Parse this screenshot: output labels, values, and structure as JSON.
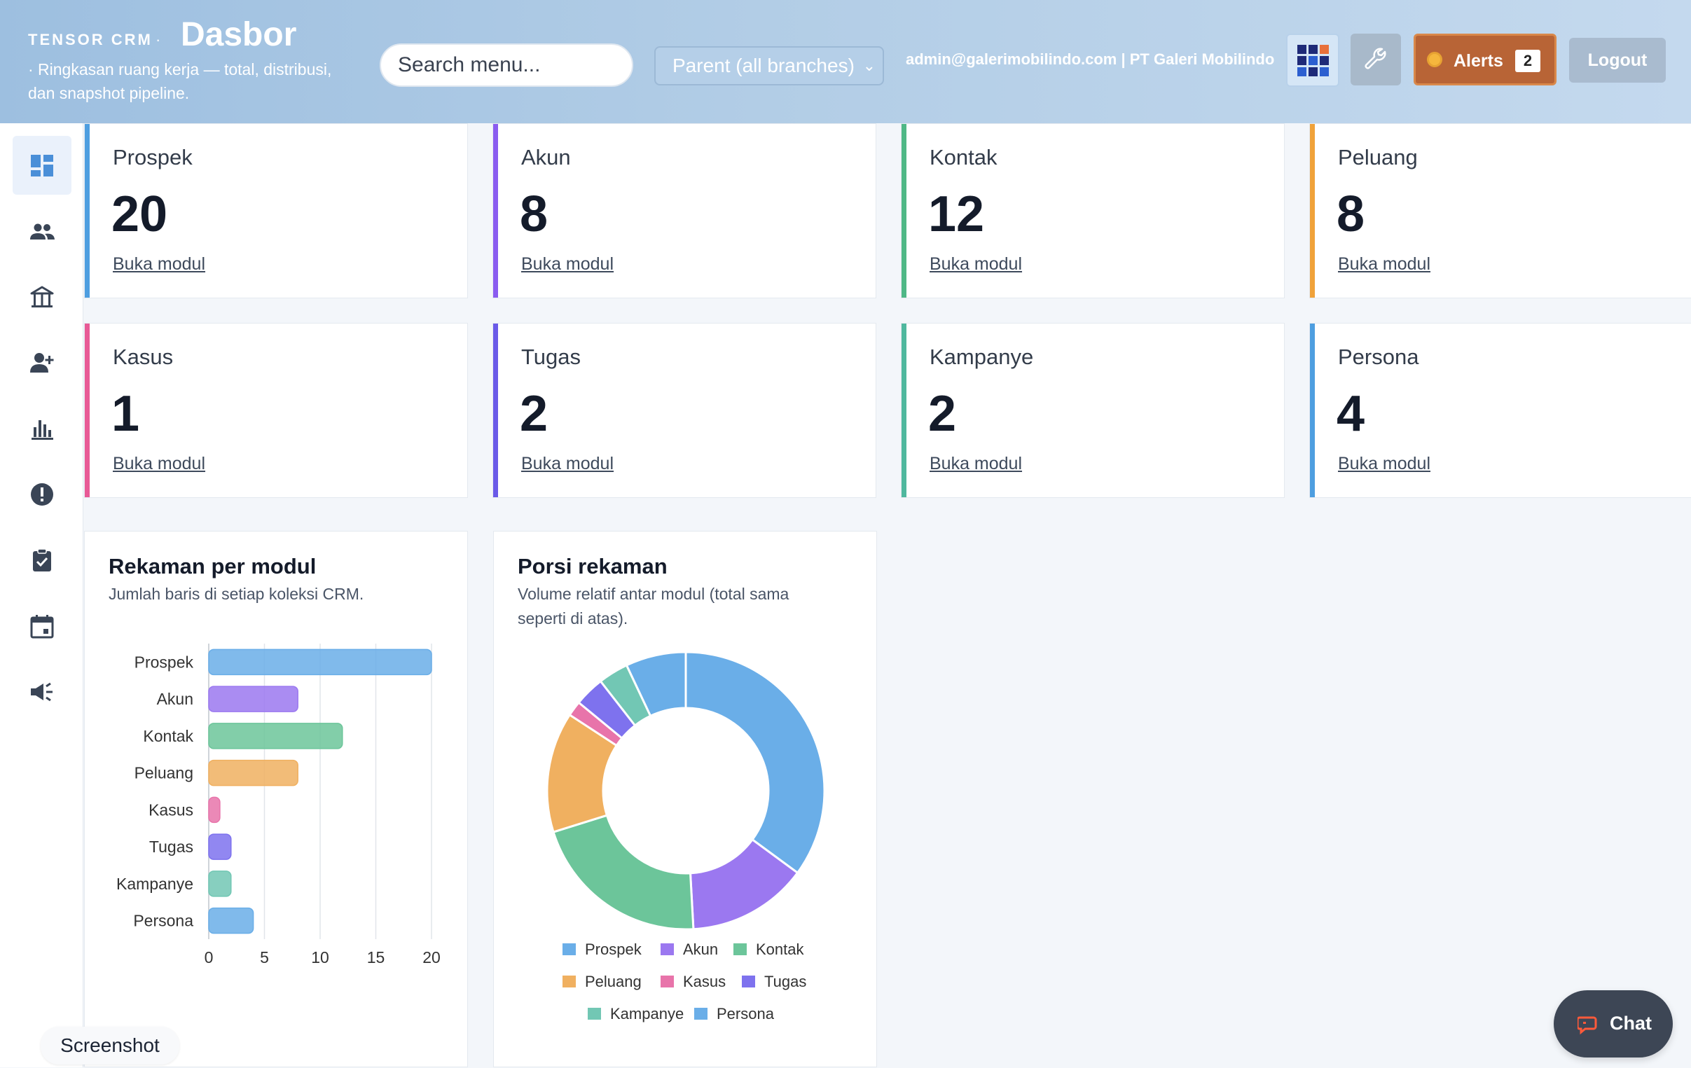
{
  "header": {
    "brand": "TENSOR CRM",
    "separator": "·",
    "title": "Dasbor",
    "subtitle": "·  Ringkasan ruang kerja — total, distribusi, dan snapshot pipeline.",
    "search_placeholder": "Search menu...",
    "branch_select": "Parent (all branches)",
    "user_info": "admin@galerimobilindo.com | PT Galeri Mobilindo",
    "alerts_label": "Alerts",
    "alerts_count": "2",
    "logout_label": "Logout",
    "app_grid_icon": "app-grid-icon",
    "tool_icon": "wrench-icon"
  },
  "sidebar": {
    "items": [
      {
        "icon": "dashboard-icon",
        "active": true
      },
      {
        "icon": "people-icon",
        "active": false
      },
      {
        "icon": "bank-icon",
        "active": false
      },
      {
        "icon": "add-person-icon",
        "active": false
      },
      {
        "icon": "bar-chart-icon",
        "active": false
      },
      {
        "icon": "alert-circle-icon",
        "active": false
      },
      {
        "icon": "clipboard-check-icon",
        "active": false
      },
      {
        "icon": "calendar-icon",
        "active": false
      },
      {
        "icon": "megaphone-icon",
        "active": false
      }
    ]
  },
  "kpis": [
    {
      "name": "Prospek",
      "value": "20",
      "link": "Buka modul",
      "color": "#4e9ee0"
    },
    {
      "name": "Akun",
      "value": "8",
      "link": "Buka modul",
      "color": "#8a5cf0"
    },
    {
      "name": "Kontak",
      "value": "12",
      "link": "Buka modul",
      "color": "#4fb886"
    },
    {
      "name": "Peluang",
      "value": "8",
      "link": "Buka modul",
      "color": "#f0a23a"
    },
    {
      "name": "Kasus",
      "value": "1",
      "link": "Buka modul",
      "color": "#e85a96"
    },
    {
      "name": "Tugas",
      "value": "2",
      "link": "Buka modul",
      "color": "#6a5ae8"
    },
    {
      "name": "Kampanye",
      "value": "2",
      "link": "Buka modul",
      "color": "#4fb89e"
    },
    {
      "name": "Persona",
      "value": "4",
      "link": "Buka modul",
      "color": "#4e9ee0"
    }
  ],
  "charts": {
    "bar_title": "Rekaman per modul",
    "bar_subtitle": "Jumlah baris di setiap koleksi CRM.",
    "donut_title": "Porsi rekaman",
    "donut_subtitle": "Volume relatif antar modul (total sama seperti di atas)."
  },
  "chart_data": [
    {
      "type": "bar",
      "orientation": "horizontal",
      "title": "Rekaman per modul",
      "subtitle": "Jumlah baris di setiap koleksi CRM.",
      "categories": [
        "Prospek",
        "Akun",
        "Kontak",
        "Peluang",
        "Kasus",
        "Tugas",
        "Kampanye",
        "Persona"
      ],
      "values": [
        20,
        8,
        12,
        8,
        1,
        2,
        2,
        4
      ],
      "colors": [
        "#6aaee8",
        "#9b78f0",
        "#6cc59a",
        "#f0b060",
        "#e874aa",
        "#7e72ee",
        "#72c7b4",
        "#6aaee8"
      ],
      "xlim": [
        0,
        20
      ],
      "xticks": [
        0,
        5,
        10,
        15,
        20
      ],
      "grid": true
    },
    {
      "type": "pie",
      "variant": "donut",
      "title": "Porsi rekaman",
      "subtitle": "Volume relatif antar modul (total sama seperti di atas).",
      "labels": [
        "Prospek",
        "Akun",
        "Kontak",
        "Peluang",
        "Kasus",
        "Tugas",
        "Kampanye",
        "Persona"
      ],
      "values": [
        20,
        8,
        12,
        8,
        1,
        2,
        2,
        4
      ],
      "colors": [
        "#6aaee8",
        "#9b78f0",
        "#6cc59a",
        "#f0b060",
        "#e874aa",
        "#7e72ee",
        "#72c7b4",
        "#6aaee8"
      ],
      "legend": "bottom"
    }
  ],
  "footer": {
    "screenshot_label": "Screenshot",
    "chat_label": "Chat"
  }
}
